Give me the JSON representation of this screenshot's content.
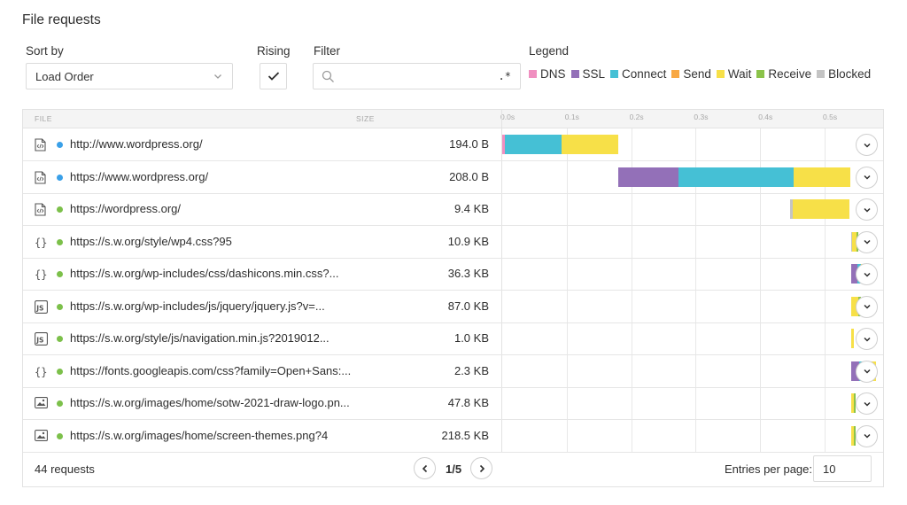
{
  "title": "File requests",
  "controls": {
    "sort_label": "Sort by",
    "sort_value": "Load Order",
    "rising_label": "Rising",
    "filter_label": "Filter",
    "filter_value": "",
    "regex_symbol": ".*",
    "legend_label": "Legend"
  },
  "legend": [
    {
      "name": "DNS",
      "color": "#f08fc0"
    },
    {
      "name": "SSL",
      "color": "#9370b8"
    },
    {
      "name": "Connect",
      "color": "#45c0d5"
    },
    {
      "name": "Send",
      "color": "#f8a844"
    },
    {
      "name": "Wait",
      "color": "#f7e048"
    },
    {
      "name": "Receive",
      "color": "#8bc34a"
    },
    {
      "name": "Blocked",
      "color": "#c4c4c4"
    }
  ],
  "columns": {
    "file": "FILE",
    "size": "SIZE"
  },
  "timeline_ticks": [
    "0.0s",
    "0.1s",
    "0.2s",
    "0.3s",
    "0.4s",
    "0.5s"
  ],
  "rows": [
    {
      "icon": "html-file-icon",
      "status_color": "#3aa0e8",
      "url": "http://www.wordpress.org/",
      "size": "194.0 B",
      "timing": [
        {
          "phase": "DNS",
          "start": 0.0,
          "end": 0.004
        },
        {
          "phase": "Connect",
          "start": 0.004,
          "end": 0.092
        },
        {
          "phase": "Wait",
          "start": 0.092,
          "end": 0.18
        }
      ]
    },
    {
      "icon": "html-file-icon",
      "status_color": "#3aa0e8",
      "url": "https://www.wordpress.org/",
      "size": "208.0 B",
      "timing": [
        {
          "phase": "SSL",
          "start": 0.18,
          "end": 0.273
        },
        {
          "phase": "Connect",
          "start": 0.273,
          "end": 0.452
        },
        {
          "phase": "Wait",
          "start": 0.452,
          "end": 0.54
        }
      ]
    },
    {
      "icon": "html-file-icon",
      "status_color": "#7cc04a",
      "url": "https://wordpress.org/",
      "size": "9.4 KB",
      "timing": [
        {
          "phase": "Blocked",
          "start": 0.447,
          "end": 0.45
        },
        {
          "phase": "Wait",
          "start": 0.45,
          "end": 0.538
        }
      ]
    },
    {
      "icon": "css-file-icon",
      "status_color": "#7cc04a",
      "url": "https://s.w.org/style/wp4.css?95",
      "size": "10.9 KB",
      "timing": [
        {
          "phase": "Blocked",
          "start": 0.541,
          "end": 0.543
        },
        {
          "phase": "Wait",
          "start": 0.543,
          "end": 0.549
        },
        {
          "phase": "Receive",
          "start": 0.549,
          "end": 0.552
        }
      ]
    },
    {
      "icon": "css-file-icon",
      "status_color": "#7cc04a",
      "url": "https://s.w.org/wp-includes/css/dashicons.min.css?...",
      "size": "36.3 KB",
      "timing": [
        {
          "phase": "SSL",
          "start": 0.541,
          "end": 0.551
        },
        {
          "phase": "Connect",
          "start": 0.551,
          "end": 0.557
        },
        {
          "phase": "Wait",
          "start": 0.557,
          "end": 0.562
        }
      ]
    },
    {
      "icon": "js-file-icon",
      "status_color": "#7cc04a",
      "url": "https://s.w.org/wp-includes/js/jquery/jquery.js?v=...",
      "size": "87.0 KB",
      "timing": [
        {
          "phase": "Wait",
          "start": 0.541,
          "end": 0.552
        },
        {
          "phase": "Receive",
          "start": 0.552,
          "end": 0.556
        }
      ]
    },
    {
      "icon": "js-file-icon",
      "status_color": "#7cc04a",
      "url": "https://s.w.org/style/js/navigation.min.js?2019012...",
      "size": "1.0 KB",
      "timing": [
        {
          "phase": "Wait",
          "start": 0.541,
          "end": 0.546
        }
      ]
    },
    {
      "icon": "css-file-icon",
      "status_color": "#7cc04a",
      "url": "https://fonts.googleapis.com/css?family=Open+Sans:...",
      "size": "2.3 KB",
      "timing": [
        {
          "phase": "SSL",
          "start": 0.541,
          "end": 0.554
        },
        {
          "phase": "Connect",
          "start": 0.554,
          "end": 0.56
        },
        {
          "phase": "Wait",
          "start": 0.56,
          "end": 0.579
        }
      ]
    },
    {
      "icon": "image-file-icon",
      "status_color": "#7cc04a",
      "url": "https://s.w.org/images/home/sotw-2021-draw-logo.pn...",
      "size": "47.8 KB",
      "timing": [
        {
          "phase": "Wait",
          "start": 0.541,
          "end": 0.545
        },
        {
          "phase": "Receive",
          "start": 0.545,
          "end": 0.548
        }
      ]
    },
    {
      "icon": "image-file-icon",
      "status_color": "#7cc04a",
      "url": "https://s.w.org/images/home/screen-themes.png?4",
      "size": "218.5 KB",
      "timing": [
        {
          "phase": "Wait",
          "start": 0.541,
          "end": 0.545
        },
        {
          "phase": "Receive",
          "start": 0.545,
          "end": 0.548
        }
      ]
    }
  ],
  "footer": {
    "count": "44 requests",
    "page": "1/5",
    "entries_label": "Entries per page:",
    "entries_value": "10"
  }
}
